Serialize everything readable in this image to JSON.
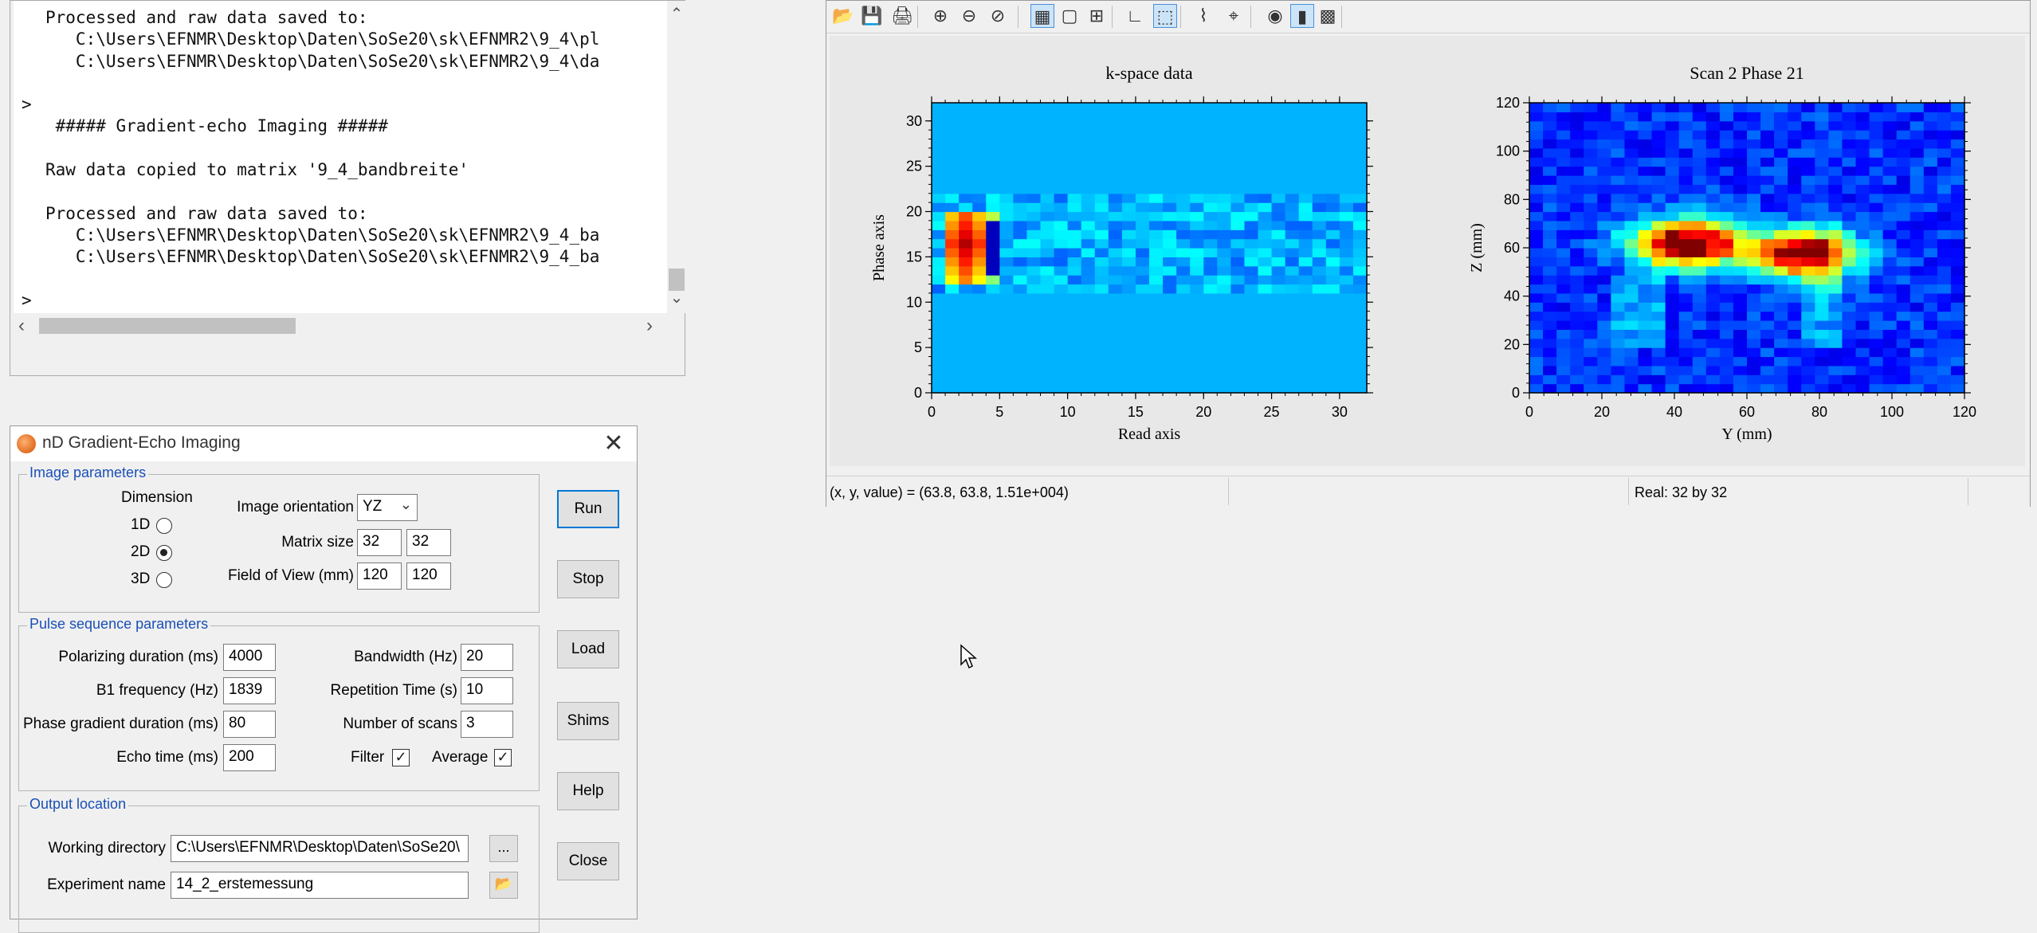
{
  "console": {
    "lines": [
      "Processed and raw data saved to:",
      "   C:\\Users\\EFNMR\\Desktop\\Daten\\SoSe20\\sk\\EFNMR2\\9_4\\pl",
      "   C:\\Users\\EFNMR\\Desktop\\Daten\\SoSe20\\sk\\EFNMR2\\9_4\\da",
      "",
      ">",
      " ##### Gradient-echo Imaging #####",
      "",
      "Raw data copied to matrix '9_4_bandbreite'",
      "",
      "Processed and raw data saved to:",
      "   C:\\Users\\EFNMR\\Desktop\\Daten\\SoSe20\\sk\\EFNMR2\\9_4_ba",
      "   C:\\Users\\EFNMR\\Desktop\\Daten\\SoSe20\\sk\\EFNMR2\\9_4_ba",
      "",
      ">"
    ],
    "prompts_offset": [
      4,
      13
    ]
  },
  "dialog": {
    "title": "nD Gradient-Echo Imaging",
    "image_params": {
      "group_label": "Image parameters",
      "dimension_label": "Dimension",
      "dim_options": [
        "1D",
        "2D",
        "3D"
      ],
      "dim_selected": "2D",
      "orientation_label": "Image orientation",
      "orientation_value": "YZ",
      "matrix_label": "Matrix size",
      "matrix_1": "32",
      "matrix_2": "32",
      "fov_label": "Field of View (mm)",
      "fov_1": "120",
      "fov_2": "120"
    },
    "pulse_params": {
      "group_label": "Pulse sequence parameters",
      "polarizing_label": "Polarizing duration (ms)",
      "polarizing_value": "4000",
      "b1_label": "B1 frequency (Hz)",
      "b1_value": "1839",
      "phase_grad_label": "Phase gradient duration (ms)",
      "phase_grad_value": "80",
      "echo_label": "Echo time (ms)",
      "echo_value": "200",
      "bandwidth_label": "Bandwidth (Hz)",
      "bandwidth_value": "20",
      "rep_label": "Repetition Time (s)",
      "rep_value": "10",
      "scans_label": "Number of scans",
      "scans_value": "3",
      "filter_label": "Filter",
      "filter_checked": true,
      "average_label": "Average",
      "average_checked": true
    },
    "output": {
      "group_label": "Output location",
      "workdir_label": "Working directory",
      "workdir_value": "C:\\Users\\EFNMR\\Desktop\\Daten\\SoSe20\\",
      "browse_label": "...",
      "expname_label": "Experiment name",
      "expname_value": "14_2_erstemessung"
    },
    "buttons": {
      "run": "Run",
      "stop": "Stop",
      "load": "Load",
      "shims": "Shims",
      "help": "Help",
      "close": "Close"
    }
  },
  "plot_window": {
    "toolbar_icons": [
      "open-icon",
      "save-icon",
      "print-icon",
      "zoom-in-icon",
      "zoom-out-icon",
      "zoom-reset-icon",
      "plot-region-icon",
      "plot-cell-icon",
      "add-plot-icon",
      "axes-icon",
      "select-region-icon",
      "line-plot-icon",
      "cursor-icon",
      "colormap-icon",
      "colorbar-icon",
      "surface-icon"
    ],
    "status_coords": "(x, y, value) = (63.8, 63.8, 1.51e+004)",
    "status_size": "Real: 32 by 32",
    "colors": {
      "low": "#000080",
      "mid_low": "#0080ff",
      "mid": "#40ff80",
      "mid_high": "#ffd000",
      "high": "#e01010"
    }
  },
  "chart_data": [
    {
      "type": "heatmap",
      "title": "k-space data",
      "xlabel": "Read axis",
      "ylabel": "Phase axis",
      "xlim": [
        0,
        32
      ],
      "ylim": [
        0,
        32
      ],
      "xticks": [
        0,
        5,
        10,
        15,
        20,
        25,
        30
      ],
      "yticks": [
        0,
        5,
        10,
        15,
        20,
        25,
        30
      ],
      "grid_size": [
        32,
        32
      ],
      "background_value": 0.3,
      "nonzero_rows": [
        11,
        21
      ],
      "hotspot": {
        "x": [
          1,
          4
        ],
        "y": [
          12,
          19
        ],
        "peak": [
          2,
          16
        ]
      }
    },
    {
      "type": "heatmap",
      "title": "Scan 2 Phase 21",
      "xlabel": "Y (mm)",
      "ylabel": "Z (mm)",
      "xlim": [
        0,
        120
      ],
      "ylim": [
        0,
        120
      ],
      "xticks": [
        0,
        20,
        40,
        60,
        80,
        100,
        120
      ],
      "yticks": [
        0,
        20,
        40,
        60,
        80,
        100,
        120
      ],
      "grid_size": [
        32,
        32
      ],
      "blobs": [
        {
          "center": [
            44,
            62
          ],
          "radius": [
            16,
            10
          ],
          "peak": 1.0
        },
        {
          "center": [
            76,
            58
          ],
          "radius": [
            14,
            10
          ],
          "peak": 0.95
        }
      ]
    }
  ]
}
